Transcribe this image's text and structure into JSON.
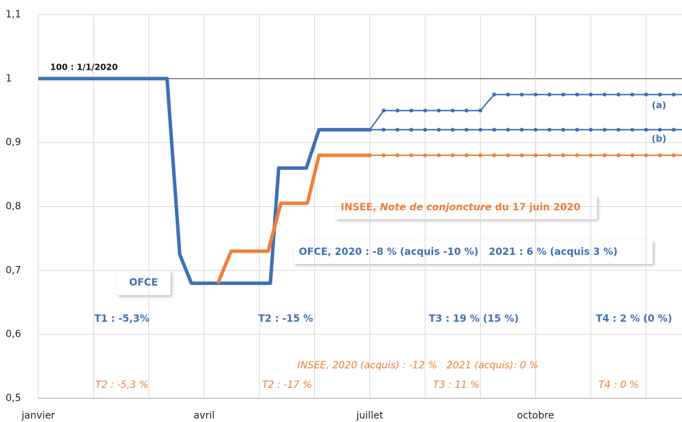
{
  "chart_data": {
    "type": "line",
    "xlim": [
      0,
      11.65
    ],
    "xticks": [
      {
        "value": 0,
        "label": "janvier"
      },
      {
        "value": 3,
        "label": "avril"
      },
      {
        "value": 6,
        "label": "juillet"
      },
      {
        "value": 9,
        "label": "octobre"
      }
    ],
    "xgrid": [
      1,
      2,
      3,
      4,
      5,
      6,
      7,
      8,
      9,
      10,
      11
    ],
    "ylim": [
      0.5,
      1.1
    ],
    "yticks": [
      {
        "value": 0.5,
        "label": "0,5"
      },
      {
        "value": 0.6,
        "label": "0,6"
      },
      {
        "value": 0.7,
        "label": "0,7"
      },
      {
        "value": 0.8,
        "label": "0,8"
      },
      {
        "value": 0.9,
        "label": "0,9"
      },
      1,
      {
        "value": 1.1,
        "label": "1,1"
      }
    ],
    "reference_line": 1,
    "grid": true,
    "series": [
      {
        "name": "OFCE",
        "color": "#3f6fb5",
        "width": 5,
        "dots": false,
        "x": [
          0,
          2.33,
          2.56,
          2.77,
          4.2,
          4.35,
          4.85,
          5.08,
          6
        ],
        "values": [
          1,
          1,
          0.725,
          0.68,
          0.68,
          0.86,
          0.86,
          0.92,
          0.92
        ]
      },
      {
        "name": "(a)",
        "color": "#3f6fb5",
        "width": 2,
        "dots": true,
        "x": [
          6,
          6.25,
          6.5,
          6.75,
          7,
          7.25,
          7.5,
          7.75,
          8,
          8.25,
          8.5,
          8.75,
          9,
          9.25,
          9.5,
          9.75,
          10,
          10.25,
          10.5,
          10.75,
          11,
          11.25,
          11.5
        ],
        "values": [
          0.92,
          0.95,
          0.95,
          0.95,
          0.95,
          0.95,
          0.95,
          0.95,
          0.95,
          0.975,
          0.975,
          0.975,
          0.975,
          0.975,
          0.975,
          0.975,
          0.975,
          0.975,
          0.975,
          0.975,
          0.975,
          0.975,
          0.975
        ]
      },
      {
        "name": "(b)",
        "color": "#3f6fb5",
        "width": 2,
        "dots": true,
        "x": [
          6,
          6.25,
          6.5,
          6.75,
          7,
          7.25,
          7.5,
          7.75,
          8,
          8.25,
          8.5,
          8.75,
          9,
          9.25,
          9.5,
          9.75,
          10,
          10.25,
          10.5,
          10.75,
          11,
          11.25,
          11.5
        ],
        "values": [
          0.92,
          0.92,
          0.92,
          0.92,
          0.92,
          0.92,
          0.92,
          0.92,
          0.92,
          0.92,
          0.92,
          0.92,
          0.92,
          0.92,
          0.92,
          0.92,
          0.92,
          0.92,
          0.92,
          0.92,
          0.92,
          0.92,
          0.92
        ]
      },
      {
        "name": "INSEE",
        "color": "#ef7f3a",
        "width": 5,
        "dots": false,
        "x": [
          3.25,
          3.49,
          4.16,
          4.39,
          4.87,
          5.08,
          6
        ],
        "values": [
          0.68,
          0.73,
          0.73,
          0.805,
          0.805,
          0.88,
          0.88
        ]
      },
      {
        "name": "INSEE-dotted",
        "color": "#ef7f3a",
        "width": 2,
        "dots": true,
        "x": [
          6,
          6.25,
          6.5,
          6.75,
          7,
          7.25,
          7.5,
          7.75,
          8,
          8.25,
          8.5,
          8.75,
          9,
          9.25,
          9.5,
          9.75,
          10,
          10.25,
          10.5,
          10.75,
          11,
          11.25,
          11.5
        ],
        "values": [
          0.88,
          0.88,
          0.88,
          0.88,
          0.88,
          0.88,
          0.88,
          0.88,
          0.88,
          0.88,
          0.88,
          0.88,
          0.88,
          0.88,
          0.88,
          0.88,
          0.88,
          0.88,
          0.88,
          0.88,
          0.88,
          0.88,
          0.88
        ]
      }
    ],
    "insee_box": [
      "INSEE, ",
      "Note de conjoncture",
      " du 17 juin 2020"
    ],
    "annotations": [
      {
        "text": "100 : 1/1/2020"
      },
      {
        "text": "OFCE, 2020 : -8 % (acquis -10 %)   2021 : 6 % (acquis 3 %)"
      },
      {
        "text": "OFCE"
      },
      {
        "text": "T1 : -5,3%"
      },
      {
        "text": "T2 : -15 %"
      },
      {
        "text": "T3 : 19 % (15 %)"
      },
      {
        "text": "T4 : 2 % (0 %)"
      },
      {
        "text": "INSEE, 2020 (acquis) : -12 %   2021 (acquis): 0 %"
      },
      {
        "text": "T2 : -5,3 %"
      },
      {
        "text": "T2 : -17 %"
      },
      {
        "text": "T3 : 11 %"
      },
      {
        "text": "T4 : 0 %"
      }
    ]
  }
}
